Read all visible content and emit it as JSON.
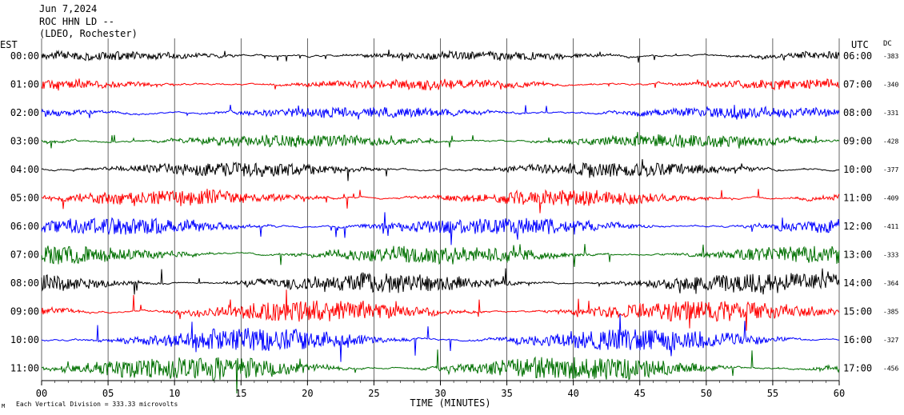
{
  "header": {
    "date": "Jun 7,2024",
    "station": "ROC HHN LD --",
    "network": "(LDEO, Rochester)"
  },
  "left_axis_label": "EST",
  "right_axis_label": "UTC",
  "dc_label": "DC",
  "footer": {
    "scale_note": "Each Vertical Division =  333.33 microvolts",
    "corner_mark": "M"
  },
  "chart_data": {
    "type": "line",
    "xlabel": "TIME (MINUTES)",
    "xlim": [
      0,
      60
    ],
    "x_ticks": [
      "00",
      "05",
      "10",
      "15",
      "20",
      "25",
      "30",
      "35",
      "40",
      "45",
      "50",
      "55",
      "60"
    ],
    "grid": true,
    "colors": [
      "#000000",
      "#ff0000",
      "#0000ff",
      "#007000"
    ],
    "rows": [
      {
        "est": "00:00",
        "utc": "06:00",
        "dc": "-383",
        "color": "#000000"
      },
      {
        "est": "01:00",
        "utc": "07:00",
        "dc": "-340",
        "color": "#ff0000"
      },
      {
        "est": "02:00",
        "utc": "08:00",
        "dc": "-331",
        "color": "#0000ff"
      },
      {
        "est": "03:00",
        "utc": "09:00",
        "dc": "-428",
        "color": "#007000"
      },
      {
        "est": "04:00",
        "utc": "10:00",
        "dc": "-377",
        "color": "#000000"
      },
      {
        "est": "05:00",
        "utc": "11:00",
        "dc": "-409",
        "color": "#ff0000"
      },
      {
        "est": "06:00",
        "utc": "12:00",
        "dc": "-411",
        "color": "#0000ff"
      },
      {
        "est": "07:00",
        "utc": "13:00",
        "dc": "-333",
        "color": "#007000"
      },
      {
        "est": "08:00",
        "utc": "14:00",
        "dc": "-364",
        "color": "#000000"
      },
      {
        "est": "09:00",
        "utc": "15:00",
        "dc": "-385",
        "color": "#ff0000"
      },
      {
        "est": "10:00",
        "utc": "16:00",
        "dc": "-327",
        "color": "#0000ff"
      },
      {
        "est": "11:00",
        "utc": "17:00",
        "dc": "-456",
        "color": "#007000"
      }
    ]
  }
}
